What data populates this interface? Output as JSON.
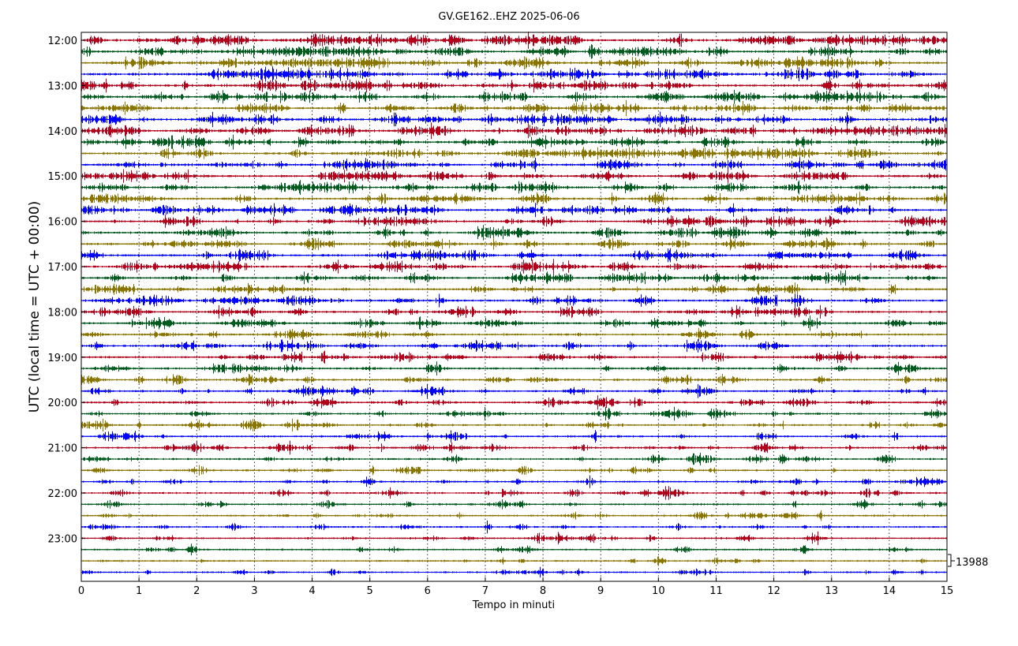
{
  "chart_data": {
    "type": "line",
    "title": "GV.GE162..EHZ 2025-06-06",
    "xlabel": "Tempo in minuti",
    "ylabel": "UTC (local time = UTC + 00:00)",
    "xlim": [
      0,
      15
    ],
    "x_ticks": [
      "0",
      "1",
      "2",
      "3",
      "4",
      "5",
      "6",
      "7",
      "8",
      "9",
      "10",
      "11",
      "12",
      "13",
      "14",
      "15"
    ],
    "y_tick_labels": [
      "12:00",
      "13:00",
      "14:00",
      "15:00",
      "16:00",
      "17:00",
      "18:00",
      "19:00",
      "20:00",
      "21:00",
      "22:00",
      "23:00"
    ],
    "start_time": "12:00",
    "trace_interval_minutes": 15,
    "trace_count": 48,
    "trace_colors": [
      "#b2001a",
      "#005a1e",
      "#8a7500",
      "#0000ff"
    ],
    "scale_label": "13988",
    "vertical_grid": "dotted"
  }
}
